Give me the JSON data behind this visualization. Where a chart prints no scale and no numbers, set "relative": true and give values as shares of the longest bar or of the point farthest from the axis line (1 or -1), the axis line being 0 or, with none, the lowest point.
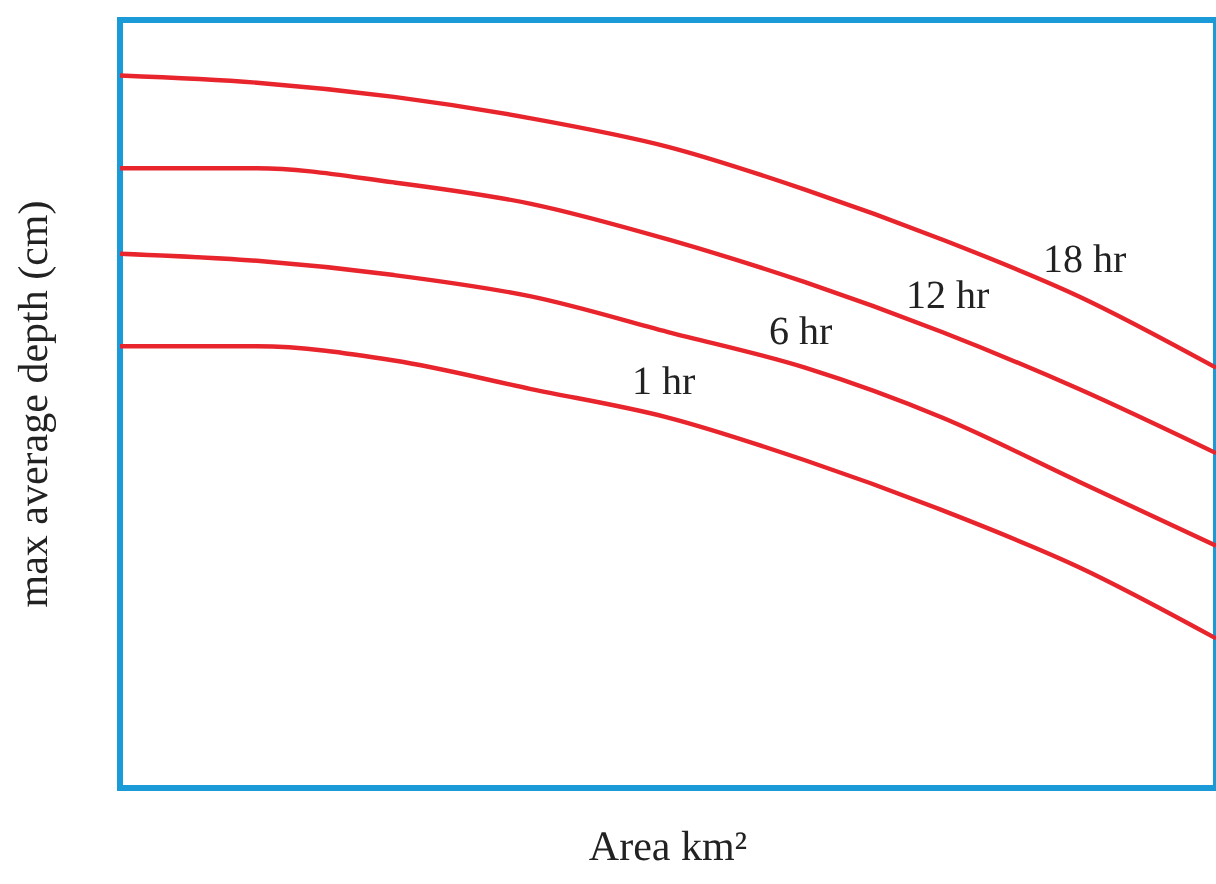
{
  "chart_data": {
    "type": "line",
    "relative": true,
    "xlabel": "Area km²",
    "ylabel": "max average depth (cm)",
    "categories": [
      null,
      null,
      null,
      null,
      null,
      null,
      null,
      null,
      null
    ],
    "grid": false,
    "marker": "none",
    "line_style": "solid",
    "series": [
      {
        "name": "18 hr",
        "color": "#e8242c",
        "values": [
          1,
          0.99,
          0.97,
          0.94,
          0.9,
          0.84,
          0.77,
          0.69,
          0.59
        ]
      },
      {
        "name": "12 hr",
        "color": "#e8242c",
        "values": [
          0.87,
          0.87,
          0.85,
          0.82,
          0.77,
          0.71,
          0.64,
          0.56,
          0.47
        ]
      },
      {
        "name": "6 hr",
        "color": "#e8242c",
        "values": [
          0.75,
          0.74,
          0.72,
          0.69,
          0.64,
          0.59,
          0.52,
          0.43,
          0.34
        ]
      },
      {
        "name": "1 hr",
        "color": "#e8242c",
        "values": [
          0.62,
          0.62,
          0.6,
          0.56,
          0.52,
          0.46,
          0.39,
          0.31,
          0.21
        ]
      }
    ]
  }
}
